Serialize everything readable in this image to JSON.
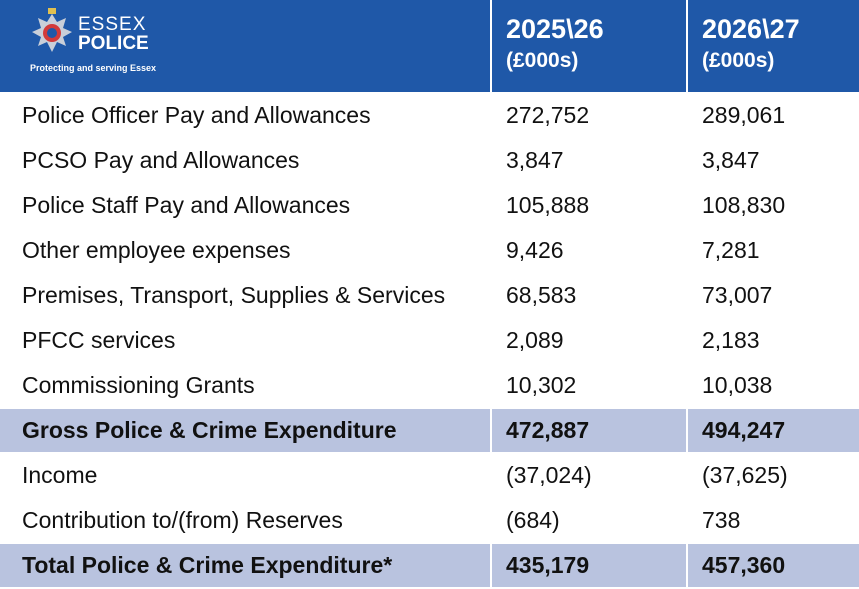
{
  "header": {
    "logo_lines": [
      "ESSEX",
      "POLICE"
    ],
    "logo_tagline": "Protecting and serving Essex",
    "columns": [
      {
        "year": "2025\\26",
        "unit": "(£000s)"
      },
      {
        "year": "2026\\27",
        "unit": "(£000s)"
      }
    ]
  },
  "table": {
    "rows": [
      {
        "cells": [
          "Police Officer Pay and Allowances",
          "272,752",
          "289,061"
        ],
        "bold": false
      },
      {
        "cells": [
          "PCSO Pay and Allowances",
          "3,847",
          "3,847"
        ],
        "bold": false
      },
      {
        "cells": [
          "Police Staff Pay and Allowances",
          "105,888",
          "108,830"
        ],
        "bold": false
      },
      {
        "cells": [
          "Other employee expenses",
          "9,426",
          "7,281"
        ],
        "bold": false
      },
      {
        "cells": [
          "Premises, Transport, Supplies & Services",
          "68,583",
          "73,007"
        ],
        "bold": false
      },
      {
        "cells": [
          "PFCC services",
          "2,089",
          "2,183"
        ],
        "bold": false
      },
      {
        "cells": [
          "Commissioning Grants",
          "10,302",
          "10,038"
        ],
        "bold": false
      },
      {
        "cells": [
          "Gross Police & Crime Expenditure",
          "472,887",
          "494,247"
        ],
        "bold": true
      },
      {
        "cells": [
          "Income",
          "(37,024)",
          "(37,625)"
        ],
        "bold": false
      },
      {
        "cells": [
          "Contribution to/(from) Reserves",
          "(684)",
          "738"
        ],
        "bold": false
      },
      {
        "cells": [
          "Total Police & Crime Expenditure*",
          "435,179",
          "457,360"
        ],
        "bold": true
      }
    ]
  }
}
